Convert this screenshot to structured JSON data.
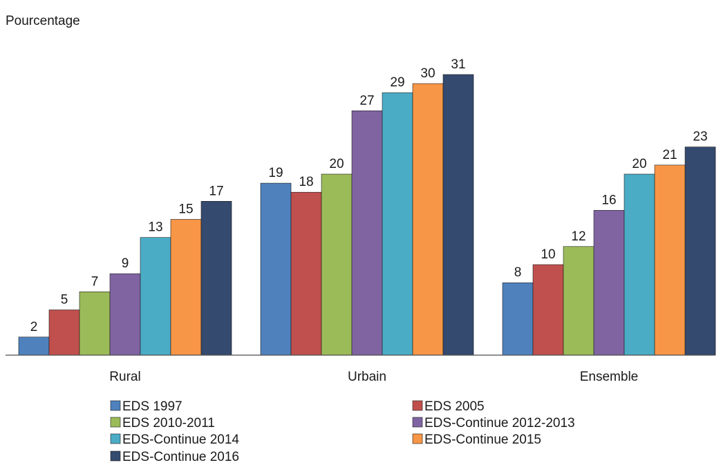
{
  "chart_data": {
    "type": "bar",
    "title": "",
    "xlabel": "",
    "ylabel": "Pourcentage",
    "ylim": [
      0,
      35
    ],
    "grid": false,
    "legend_position": "bottom",
    "categories": [
      "Rural",
      "Urbain",
      "Ensemble"
    ],
    "series": [
      {
        "name": "EDS 1997",
        "color": "#4f81bd",
        "values": [
          2,
          19,
          8
        ]
      },
      {
        "name": "EDS 2005",
        "color": "#c0504d",
        "values": [
          5,
          18,
          10
        ]
      },
      {
        "name": "EDS 2010-2011",
        "color": "#9bbb59",
        "values": [
          7,
          20,
          12
        ]
      },
      {
        "name": "EDS-Continue 2012-2013",
        "color": "#8064a2",
        "values": [
          9,
          27,
          16
        ]
      },
      {
        "name": "EDS-Continue 2014",
        "color": "#4bacc6",
        "values": [
          13,
          29,
          20
        ]
      },
      {
        "name": "EDS-Continue 2015",
        "color": "#f79646",
        "values": [
          15,
          30,
          21
        ]
      },
      {
        "name": "EDS-Continue 2016",
        "color": "#344a6e",
        "values": [
          17,
          31,
          23
        ]
      }
    ]
  }
}
